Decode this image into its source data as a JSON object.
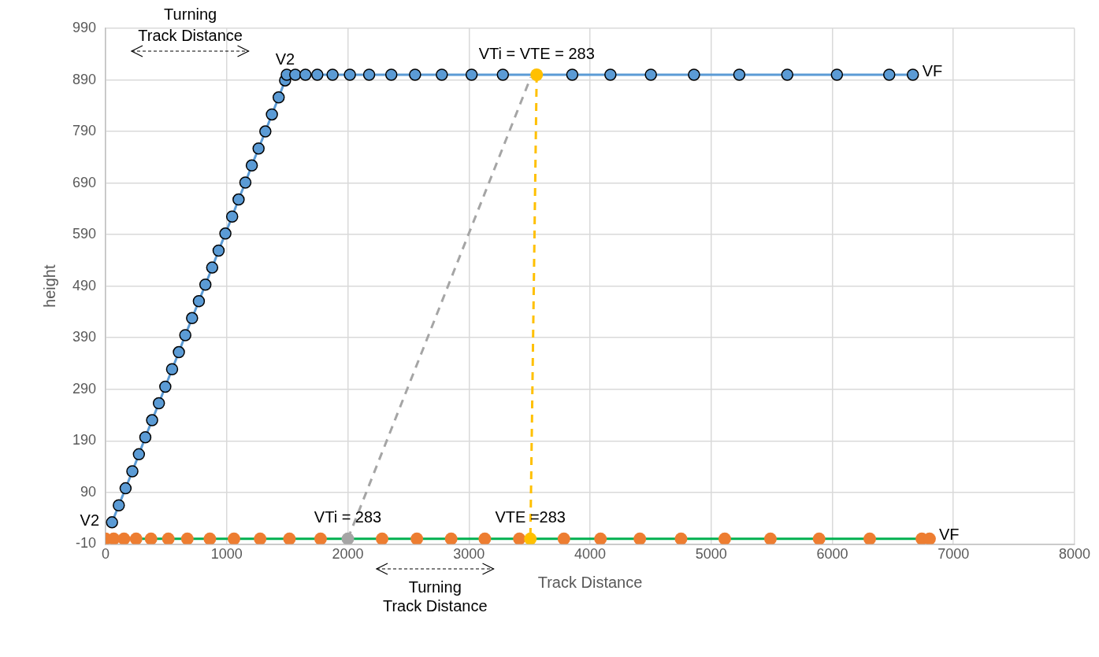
{
  "chart_data": {
    "type": "scatter",
    "xlabel": "Track Distance",
    "ylabel": "height",
    "xlim": [
      0,
      8000
    ],
    "xticks": [
      0,
      1000,
      2000,
      3000,
      4000,
      5000,
      6000,
      7000,
      8000
    ],
    "ylim": [
      -10,
      990
    ],
    "yticks": [
      -10,
      90,
      190,
      290,
      390,
      490,
      590,
      690,
      790,
      890,
      990
    ],
    "grid": true,
    "legend": false,
    "marker": "circle",
    "series": [
      {
        "type": "line",
        "marker": "none",
        "color": "#00b050",
        "x": [
          0,
          6803
        ],
        "values": [
          0,
          0
        ]
      },
      {
        "type": "line",
        "color": "#5b9bd5",
        "x": [
          53,
          109,
          165,
          221,
          275,
          328,
          384,
          440,
          493,
          549,
          605,
          658,
          714,
          770,
          824,
          880,
          933,
          989,
          1045,
          1098,
          1154,
          1207,
          1263,
          1319,
          1373,
          1429,
          1482,
          1496,
          1566,
          1650,
          1748,
          1874,
          2017,
          2176,
          2359,
          2555,
          2776,
          3022,
          3280,
          3853,
          4168,
          4502,
          4858,
          5232,
          5628,
          6038,
          6470,
          6665
        ],
        "values": [
          32,
          65,
          98,
          131,
          164,
          197,
          230,
          263,
          295,
          329,
          362,
          395,
          428,
          461,
          493,
          526,
          559,
          592,
          625,
          658,
          691,
          724,
          757,
          790,
          823,
          856,
          889,
          900,
          900,
          900,
          900,
          900,
          900,
          900,
          900,
          900,
          900,
          900,
          900,
          900,
          900,
          900,
          900,
          900,
          900,
          900,
          900,
          900
        ]
      },
      {
        "type": "scatter",
        "color": "#ed7d31",
        "x": [
          0,
          67,
          152,
          252,
          375,
          518,
          675,
          861,
          1060,
          1276,
          1518,
          1775,
          2283,
          2570,
          2853,
          3131,
          3416,
          3784,
          4086,
          4411,
          4751,
          5112,
          5489,
          5891,
          6309,
          6739,
          6803
        ],
        "values": [
          0,
          0,
          0,
          0,
          0,
          0,
          0,
          0,
          0,
          0,
          0,
          0,
          0,
          0,
          0,
          0,
          0,
          0,
          0,
          0,
          0,
          0,
          0,
          0,
          0,
          0,
          0
        ]
      },
      {
        "type": "line",
        "marker": "none",
        "line_style": "dashed",
        "color": "#a5a5a5",
        "x": [
          2000,
          3510
        ],
        "values": [
          0,
          895
        ]
      },
      {
        "type": "line",
        "marker": "none",
        "line_style": "dashed",
        "color": "#ffc000",
        "x": [
          3559,
          3507
        ],
        "values": [
          900,
          0
        ]
      },
      {
        "type": "scatter",
        "color": "#a5a5a5",
        "x": [
          2000
        ],
        "values": [
          0
        ]
      },
      {
        "type": "scatter",
        "color": "#ffc000",
        "x": [
          3507,
          3559
        ],
        "values": [
          0,
          900
        ]
      }
    ],
    "annotations": [
      {
        "text": "V2",
        "x": 0,
        "y": 0
      },
      {
        "text": "V2",
        "x": 1482,
        "y": 889
      },
      {
        "text": "VF",
        "x": 6665,
        "y": 900
      },
      {
        "text": "VTi = VTE = 283",
        "x": 3559,
        "y": 900
      },
      {
        "text": "VTi = 283",
        "x": 2000,
        "y": 0
      },
      {
        "text": "VTE =283",
        "x": 3507,
        "y": 0
      },
      {
        "text": "VF",
        "x": 6803,
        "y": 0
      },
      "Turning\nTrack Distance",
      "Turning\nTrack Distance"
    ]
  }
}
